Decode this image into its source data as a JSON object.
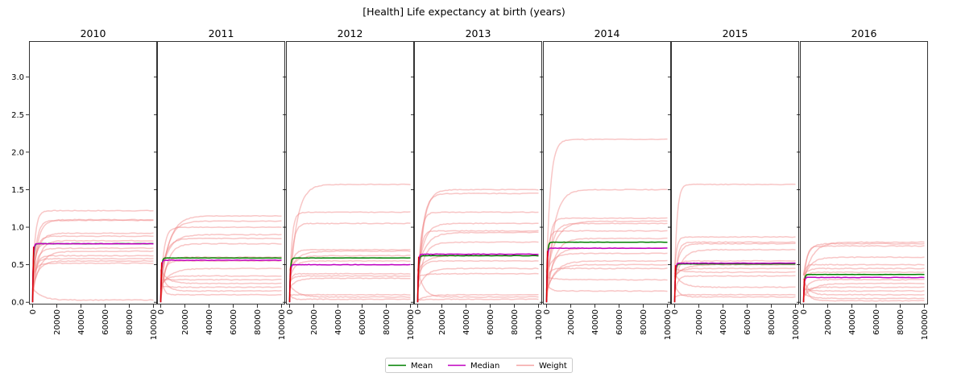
{
  "chart_data": {
    "type": "line",
    "title": "[Health] Life expectancy at birth (years)",
    "panels": [
      "2010",
      "2011",
      "2012",
      "2013",
      "2014",
      "2015",
      "2016"
    ],
    "x_ticks": [
      0,
      20000,
      40000,
      60000,
      80000,
      100000
    ],
    "x_tick_labels": [
      "0",
      "20000",
      "40000",
      "60000",
      "80000",
      "100000"
    ],
    "xlim": [
      -3000,
      103000
    ],
    "y_ticks": [
      0.0,
      0.5,
      1.0,
      1.5,
      2.0,
      2.5,
      3.0
    ],
    "y_tick_labels": [
      "0.0",
      "0.5",
      "1.0",
      "1.5",
      "2.0",
      "2.5",
      "3.0"
    ],
    "ylim": [
      -0.03,
      3.48
    ],
    "legend": {
      "placement": "bottom-center",
      "entries": [
        {
          "label": "Mean",
          "color": "#008000"
        },
        {
          "label": "Median",
          "color": "#c000c0"
        },
        {
          "label": "Weight",
          "color": "#f4a3a3"
        }
      ]
    },
    "colors": {
      "mean": "#008000",
      "median": "#c000c0",
      "weight": "#f08080",
      "median_early": "#e00000"
    },
    "weight_finals": [
      [
        1.22,
        1.1,
        1.09,
        0.92,
        0.88,
        0.82,
        0.78,
        0.72,
        0.68,
        0.62,
        0.58,
        0.55,
        0.52,
        0.03
      ],
      [
        1.15,
        1.08,
        1.0,
        0.9,
        0.85,
        0.78,
        0.6,
        0.55,
        0.45,
        0.35,
        0.3,
        0.25,
        0.2,
        0.15,
        0.1
      ],
      [
        1.57,
        1.2,
        1.05,
        0.7,
        0.68,
        0.62,
        0.55,
        0.38,
        0.35,
        0.32,
        0.1,
        0.07,
        0.04
      ],
      [
        1.5,
        1.45,
        1.2,
        1.05,
        0.95,
        0.93,
        0.8,
        0.62,
        0.55,
        0.45,
        0.38,
        0.1,
        0.07,
        0.04
      ],
      [
        2.17,
        1.5,
        1.12,
        1.08,
        1.05,
        0.95,
        0.85,
        0.72,
        0.65,
        0.55,
        0.5,
        0.45,
        0.3,
        0.15
      ],
      [
        1.57,
        0.87,
        0.8,
        0.78,
        0.7,
        0.55,
        0.5,
        0.45,
        0.4,
        0.35,
        0.2,
        0.1,
        0.07
      ],
      [
        0.8,
        0.78,
        0.75,
        0.6,
        0.5,
        0.45,
        0.4,
        0.3,
        0.25,
        0.2,
        0.15,
        0.1,
        0.05,
        0.02
      ]
    ],
    "mean_final": [
      0.78,
      0.59,
      0.59,
      0.62,
      0.8,
      0.51,
      0.37
    ],
    "median_final": [
      0.78,
      0.56,
      0.5,
      0.64,
      0.72,
      0.52,
      0.33
    ]
  }
}
